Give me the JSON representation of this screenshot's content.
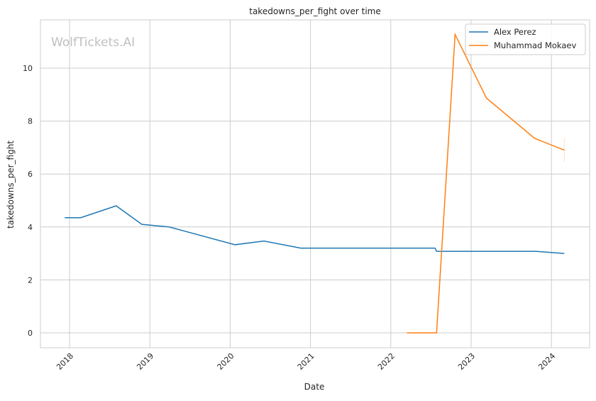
{
  "chart_data": {
    "type": "line",
    "title": "takedowns_per_fight over time",
    "xlabel": "Date",
    "ylabel": "takedowns_per_fight",
    "watermark": "WolfTickets.AI",
    "xlim": [
      2017.6,
      2024.6
    ],
    "ylim": [
      -0.57,
      11.8
    ],
    "x_ticks": [
      2018,
      2019,
      2020,
      2021,
      2022,
      2023,
      2024
    ],
    "x_tick_labels": [
      "2018",
      "2019",
      "2020",
      "2021",
      "2022",
      "2023",
      "2024"
    ],
    "y_ticks": [
      0,
      2,
      4,
      6,
      8,
      10
    ],
    "y_tick_labels": [
      "0",
      "2",
      "4",
      "6",
      "8",
      "10"
    ],
    "grid": true,
    "legend_position": "top-right",
    "series": [
      {
        "name": "Alex Perez",
        "color": "#1f77b4",
        "x": [
          2017.94,
          2018.14,
          2018.58,
          2018.9,
          2019.24,
          2020.06,
          2020.42,
          2020.88,
          2022.55,
          2022.57,
          2023.8,
          2024.16
        ],
        "y": [
          4.35,
          4.35,
          4.8,
          4.1,
          4.0,
          3.33,
          3.47,
          3.2,
          3.2,
          3.08,
          3.08,
          3.0
        ]
      },
      {
        "name": "Muhammad Mokaev",
        "color": "#ff7f0e",
        "x": [
          2022.2,
          2022.57,
          2022.8,
          2023.19,
          2023.79,
          2024.16
        ],
        "y": [
          0,
          0,
          11.27,
          8.87,
          7.35,
          6.9
        ],
        "error_band_last": [
          6.46,
          7.35
        ]
      }
    ]
  }
}
